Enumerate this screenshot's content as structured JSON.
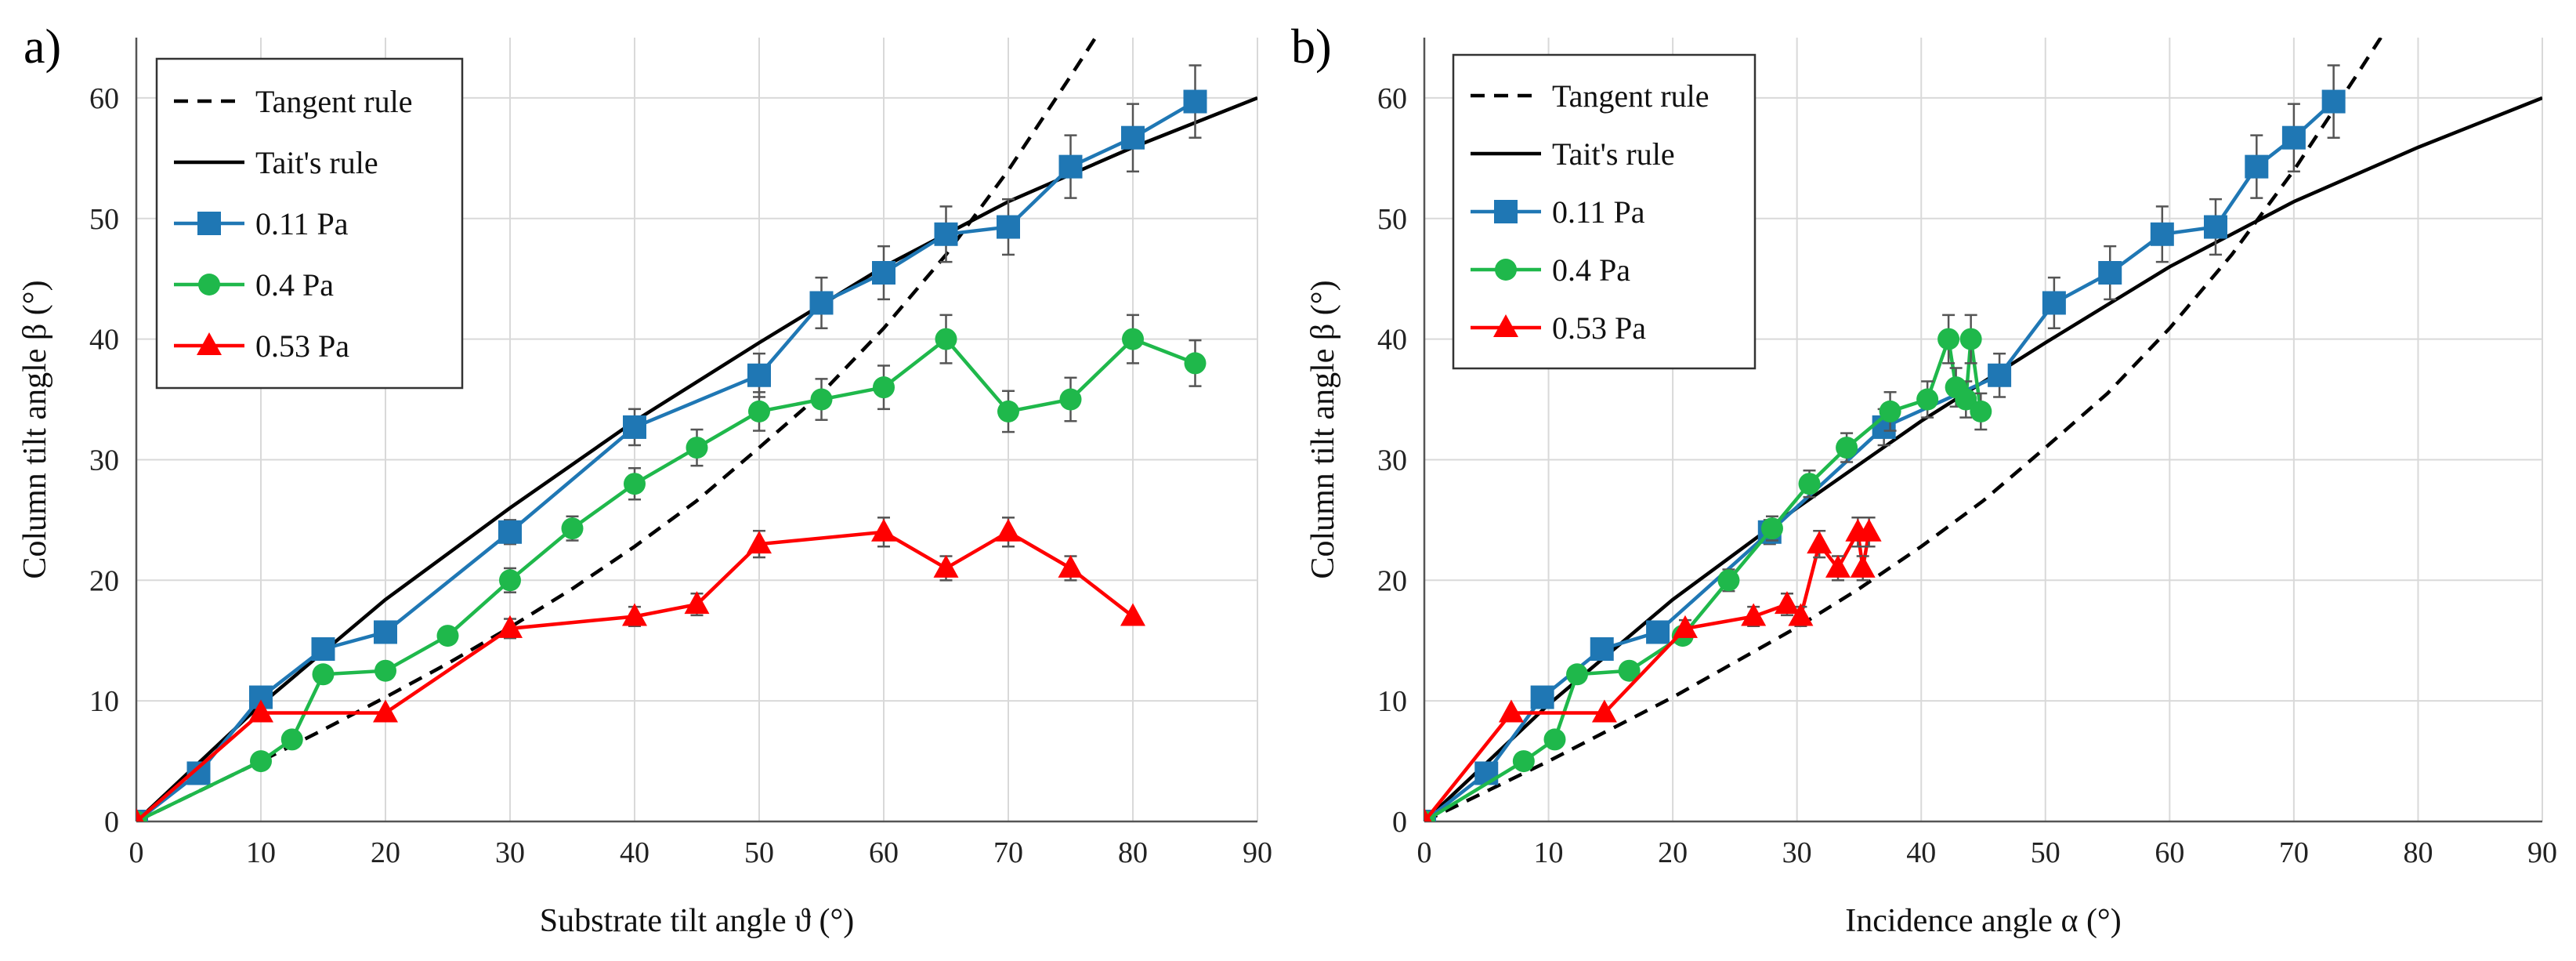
{
  "chart_data": [
    {
      "panel_label": "a)",
      "type": "line",
      "xlabel": "Substrate tilt angle ϑ (°)",
      "ylabel": "Column tilt angle β (°)",
      "xlim": [
        0,
        90
      ],
      "ylim": [
        0,
        65
      ],
      "xticks": [
        0,
        10,
        20,
        30,
        40,
        50,
        60,
        70,
        80,
        90
      ],
      "yticks": [
        0,
        10,
        20,
        30,
        40,
        50,
        60
      ],
      "grid": true,
      "legend_position": "top-left",
      "series": [
        {
          "name": "Tangent rule",
          "style": "dashed",
          "color": "#000000",
          "marker": "none",
          "x": [
            0,
            5,
            10,
            15,
            20,
            25,
            30,
            35,
            40,
            45,
            50,
            55,
            60,
            65,
            70,
            75,
            77
          ],
          "y": [
            0,
            2.5,
            5.0,
            7.6,
            10.3,
            13.1,
            16.1,
            19.3,
            22.8,
            26.6,
            31.0,
            35.5,
            40.9,
            47.0,
            54.0,
            61.8,
            65
          ]
        },
        {
          "name": "Tait's rule",
          "style": "solid",
          "color": "#000000",
          "marker": "none",
          "x": [
            0,
            10,
            20,
            30,
            40,
            50,
            60,
            70,
            80,
            90
          ],
          "y": [
            0,
            9.7,
            18.4,
            26.0,
            33.2,
            39.7,
            46.0,
            51.4,
            55.9,
            60.0
          ]
        },
        {
          "name": "0.11 Pa",
          "style": "solid",
          "color": "#1f77b4",
          "marker": "square",
          "x": [
            0,
            5,
            10,
            15,
            20,
            30,
            40,
            50,
            55,
            60,
            65,
            70,
            75,
            80,
            85
          ],
          "y": [
            0,
            4,
            10.3,
            14.3,
            15.7,
            24,
            32.7,
            37,
            43,
            45.5,
            48.7,
            49.3,
            54.3,
            56.7,
            59.7
          ],
          "err": [
            0,
            0,
            0,
            0,
            0,
            1,
            1.5,
            1.8,
            2.1,
            2.2,
            2.3,
            2.3,
            2.6,
            2.8,
            3
          ]
        },
        {
          "name": "0.4 Pa",
          "style": "solid",
          "color": "#1fb84b",
          "marker": "circle",
          "x": [
            0,
            10,
            12.5,
            15,
            20,
            25,
            30,
            35,
            40,
            45,
            50,
            55,
            60,
            65,
            70,
            75,
            80,
            85
          ],
          "y": [
            0,
            5,
            6.8,
            12.2,
            12.5,
            15.4,
            20,
            24.3,
            28,
            31,
            34,
            35,
            36,
            40,
            34,
            35,
            40,
            38
          ],
          "err": [
            0,
            0,
            0,
            0,
            0,
            0,
            1,
            1,
            1.3,
            1.5,
            1.6,
            1.7,
            1.8,
            2,
            1.7,
            1.8,
            2,
            1.9
          ]
        },
        {
          "name": "0.53 Pa",
          "style": "solid",
          "color": "#ff0000",
          "marker": "triangle",
          "x": [
            0,
            10,
            20,
            30,
            40,
            45,
            50,
            60,
            65,
            70,
            75,
            80
          ],
          "y": [
            0,
            9,
            9,
            16,
            17,
            18,
            23,
            24,
            21,
            24,
            21,
            17
          ],
          "err": [
            0,
            0,
            0,
            0.8,
            0.8,
            0.9,
            1.1,
            1.2,
            1.0,
            1.2,
            1.0,
            0
          ]
        }
      ]
    },
    {
      "panel_label": "b)",
      "type": "line",
      "xlabel": "Incidence angle α (°)",
      "ylabel": "Column tilt angle β (°)",
      "xlim": [
        0,
        90
      ],
      "ylim": [
        0,
        65
      ],
      "xticks": [
        0,
        10,
        20,
        30,
        40,
        50,
        60,
        70,
        80,
        90
      ],
      "yticks": [
        0,
        10,
        20,
        30,
        40,
        50,
        60
      ],
      "grid": true,
      "legend_position": "top-left",
      "series": [
        {
          "name": "Tangent rule",
          "style": "dashed",
          "color": "#000000",
          "marker": "none",
          "x": [
            0,
            10,
            20,
            30,
            35,
            40,
            45,
            50,
            55,
            60,
            65,
            70,
            75,
            77
          ],
          "y": [
            0,
            5.0,
            10.3,
            16.1,
            19.3,
            22.8,
            26.6,
            31.0,
            35.5,
            40.9,
            47.0,
            54.0,
            61.8,
            65
          ]
        },
        {
          "name": "Tait's rule",
          "style": "solid",
          "color": "#000000",
          "marker": "none",
          "x": [
            0,
            10,
            20,
            30,
            40,
            50,
            60,
            70,
            80,
            90
          ],
          "y": [
            0,
            9.7,
            18.4,
            26.0,
            33.2,
            39.7,
            46.0,
            51.4,
            55.9,
            60.0
          ]
        },
        {
          "name": "0.11 Pa",
          "style": "solid",
          "color": "#1f77b4",
          "marker": "square",
          "x": [
            0,
            5,
            9.5,
            14.3,
            18.8,
            27.8,
            37,
            46.3,
            50.7,
            55.2,
            59.4,
            63.7,
            67,
            70,
            73.2
          ],
          "y": [
            0,
            4,
            10.3,
            14.3,
            15.7,
            24,
            32.7,
            37,
            43,
            45.5,
            48.7,
            49.3,
            54.3,
            56.7,
            59.7
          ],
          "err": [
            0,
            0,
            0,
            0,
            0,
            1,
            1.5,
            1.8,
            2.1,
            2.2,
            2.3,
            2.3,
            2.6,
            2.8,
            3
          ]
        },
        {
          "name": "0.4 Pa",
          "style": "solid",
          "color": "#1fb84b",
          "marker": "circle",
          "x": [
            0,
            8,
            10.5,
            12.3,
            16.5,
            20.8,
            24.5,
            28,
            31,
            34,
            37.5,
            40.5,
            42.2,
            42.8,
            43.6,
            44,
            44.8
          ],
          "y": [
            0,
            5,
            6.8,
            12.2,
            12.5,
            15.4,
            20,
            24.3,
            28,
            31,
            34,
            35,
            40,
            36,
            35,
            40,
            34
          ],
          "err": [
            0,
            0,
            0,
            0,
            0,
            0,
            0.9,
            1.0,
            1.1,
            1.2,
            1.6,
            1.5,
            2.0,
            1.6,
            1.5,
            2.0,
            1.5
          ]
        },
        {
          "name": "0.53 Pa",
          "style": "solid",
          "color": "#ff0000",
          "marker": "triangle",
          "x": [
            0,
            7,
            14.5,
            21,
            26.5,
            29.2,
            30.3,
            31.8,
            33.3,
            34.9,
            35.3,
            35.8
          ],
          "y": [
            0,
            9,
            9,
            16,
            17,
            18,
            17,
            23,
            21,
            24,
            21,
            24
          ],
          "err": [
            0,
            0,
            0,
            0.7,
            0.8,
            0.9,
            0.8,
            1.1,
            1.0,
            1.2,
            1.0,
            1.2
          ]
        }
      ]
    }
  ]
}
